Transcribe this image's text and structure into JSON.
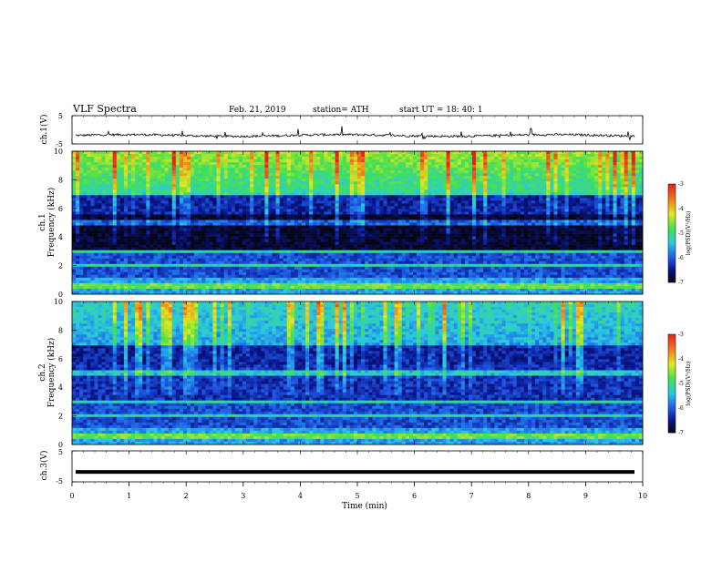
{
  "header": {
    "title": "VLF  Spectra",
    "date": "Feb. 21, 2019",
    "station": "station= ATH",
    "start": "start  UT  =    18: 40: 1"
  },
  "colors": {
    "background_spectrogram": "#05050f",
    "dark_blue": "#0a1a8c",
    "blue": "#1e5ae6",
    "cyan": "#2ed6e6",
    "green": "#4be04b",
    "yellow": "#e6e61e",
    "red": "#e61e1e",
    "waveform": "#000000"
  },
  "chart_data": [
    {
      "type": "line",
      "ylabel": "ch.1(V)",
      "ylim": [
        -5,
        5
      ],
      "y_ticks": [
        "5",
        "-5"
      ],
      "xlim": [
        0,
        10
      ],
      "description_values": {
        "baseline": -2,
        "noise_amplitude": 0.8
      }
    },
    {
      "type": "heatmap",
      "ylabel_line1": "ch.1",
      "ylabel_line2": "Frequency  (kHz)",
      "ylim": [
        0,
        10
      ],
      "y_ticks": [
        "0",
        "2",
        "4",
        "6",
        "8",
        "10"
      ],
      "xlim": [
        0,
        10
      ],
      "colorbar": {
        "label": "log(PSD)(V²/Hz)",
        "range": [
          -7,
          -3
        ],
        "ticks": [
          "-3",
          "-4",
          "-5",
          "-6",
          "-7"
        ]
      }
    },
    {
      "type": "heatmap",
      "ylabel_line1": "ch.2",
      "ylabel_line2": "Frequency  (kHz)",
      "ylim": [
        0,
        10
      ],
      "y_ticks": [
        "0",
        "2",
        "4",
        "6",
        "8",
        "10"
      ],
      "xlim": [
        0,
        10
      ],
      "colorbar": {
        "label": "log(PSD)(V²/Hz)",
        "range": [
          -7,
          -3
        ],
        "ticks": [
          "-3",
          "-4",
          "-5",
          "-6",
          "-7"
        ]
      }
    },
    {
      "type": "line",
      "ylabel": "ch.3(V)",
      "ylim": [
        -5,
        5
      ],
      "y_ticks": [
        "5",
        "-5"
      ],
      "xlim": [
        0,
        10
      ],
      "xlabel": "Time  (min)",
      "x_ticks": [
        "0",
        "1",
        "2",
        "3",
        "4",
        "5",
        "6",
        "7",
        "8",
        "9",
        "10"
      ],
      "description_values": {
        "constant_value": -1.8
      }
    }
  ]
}
